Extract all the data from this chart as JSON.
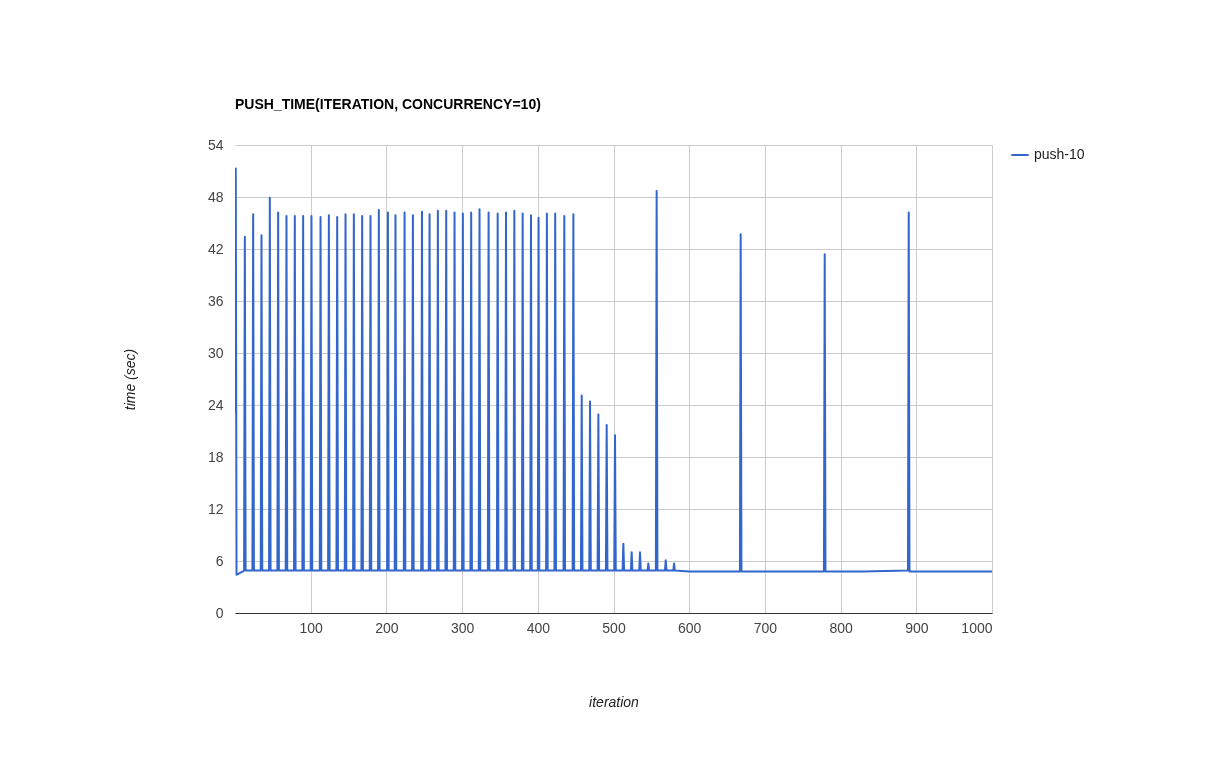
{
  "chart_data": {
    "type": "line",
    "title": "PUSH_TIME(ITERATION, CONCURRENCY=10)",
    "xlabel": "iteration",
    "ylabel": "time (sec)",
    "xlim": [
      0,
      1000
    ],
    "xticks": [
      100,
      200,
      300,
      400,
      500,
      600,
      700,
      800,
      900,
      1000
    ],
    "ylim": [
      0,
      54
    ],
    "yticks": [
      0,
      6,
      12,
      18,
      24,
      30,
      36,
      42,
      48,
      54
    ],
    "grid": true,
    "legend": "top right",
    "x": [
      0,
      1,
      2,
      12,
      13,
      14,
      23,
      24,
      25,
      34,
      35,
      36,
      45,
      46,
      47,
      56,
      57,
      58,
      67,
      68,
      69,
      78,
      79,
      80,
      89,
      90,
      91,
      100,
      101,
      102,
      112,
      113,
      114,
      123,
      124,
      125,
      134,
      135,
      136,
      145,
      146,
      147,
      156,
      157,
      158,
      167,
      168,
      169,
      178,
      179,
      180,
      189,
      190,
      191,
      201,
      202,
      203,
      211,
      212,
      213,
      223,
      224,
      225,
      234,
      235,
      236,
      246,
      247,
      248,
      256,
      257,
      258,
      267,
      268,
      269,
      278,
      279,
      280,
      289,
      290,
      291,
      300,
      301,
      302,
      311,
      312,
      313,
      322,
      323,
      324,
      334,
      335,
      336,
      346,
      347,
      348,
      357,
      358,
      359,
      368,
      369,
      370,
      379,
      380,
      381,
      390,
      391,
      392,
      400,
      401,
      402,
      411,
      412,
      413,
      422,
      423,
      424,
      434,
      435,
      436,
      446,
      447,
      448,
      457,
      458,
      459,
      468,
      469,
      470,
      479,
      480,
      481,
      490,
      491,
      492,
      501,
      502,
      503,
      512,
      513,
      514,
      523,
      524,
      525,
      534,
      535,
      536,
      545,
      546,
      547,
      556,
      557,
      558,
      568,
      569,
      570,
      579,
      580,
      581,
      600,
      650,
      667,
      668,
      669,
      720,
      778,
      779,
      780,
      830,
      889,
      890,
      891,
      950,
      1000
    ],
    "series": [
      {
        "name": "push-10",
        "color": "#3366cc",
        "values": [
          23.0,
          51.3,
          4.4,
          4.9,
          43.4,
          4.9,
          4.9,
          46.0,
          4.9,
          4.9,
          43.6,
          4.9,
          4.9,
          47.9,
          4.9,
          4.9,
          46.2,
          4.9,
          4.9,
          45.8,
          4.9,
          4.9,
          45.8,
          4.9,
          4.9,
          45.8,
          4.9,
          4.9,
          45.8,
          4.9,
          4.9,
          45.7,
          4.9,
          4.9,
          45.9,
          4.9,
          4.9,
          45.7,
          4.9,
          4.9,
          46.0,
          4.9,
          4.9,
          46.0,
          4.9,
          4.9,
          45.8,
          4.9,
          4.9,
          45.8,
          4.9,
          4.9,
          46.5,
          4.9,
          4.9,
          46.2,
          4.9,
          4.9,
          45.9,
          4.9,
          4.9,
          46.2,
          4.9,
          4.9,
          45.9,
          4.9,
          4.9,
          46.3,
          4.9,
          4.9,
          46.0,
          4.9,
          4.9,
          46.4,
          4.9,
          4.9,
          46.4,
          4.9,
          4.9,
          46.2,
          4.9,
          4.9,
          46.1,
          4.9,
          4.9,
          46.2,
          4.9,
          4.9,
          46.6,
          4.9,
          4.9,
          46.2,
          4.9,
          4.9,
          46.1,
          4.9,
          4.9,
          46.2,
          4.9,
          4.9,
          46.4,
          4.9,
          4.9,
          46.1,
          4.9,
          4.9,
          45.9,
          4.9,
          4.9,
          45.6,
          4.9,
          4.9,
          46.1,
          4.9,
          4.9,
          46.1,
          4.9,
          4.9,
          45.8,
          4.9,
          4.9,
          46.0,
          4.9,
          4.9,
          25.1,
          4.9,
          4.9,
          24.4,
          4.9,
          4.9,
          22.9,
          4.9,
          4.9,
          21.7,
          4.9,
          4.9,
          20.5,
          4.9,
          4.9,
          8.0,
          4.9,
          4.9,
          7.0,
          4.9,
          4.9,
          7.0,
          4.9,
          4.9,
          5.7,
          4.9,
          4.9,
          48.7,
          4.9,
          4.9,
          6.1,
          4.9,
          4.9,
          5.7,
          4.9,
          4.8,
          4.8,
          4.8,
          43.7,
          4.8,
          4.8,
          4.8,
          41.4,
          4.8,
          4.8,
          4.9,
          46.2,
          4.8,
          4.8,
          4.8
        ]
      }
    ]
  }
}
